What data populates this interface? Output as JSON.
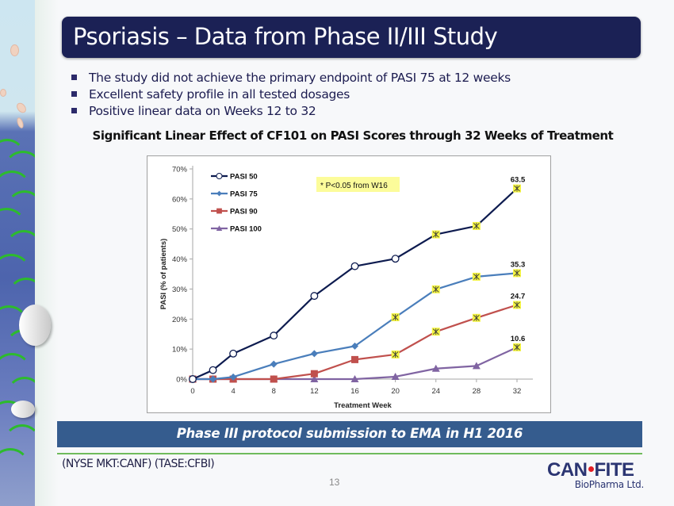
{
  "slide": {
    "title": "Psoriasis – Data from Phase II/III Study",
    "bullets": [
      "The study did not achieve the primary endpoint of PASI 75 at 12 weeks",
      "Excellent safety profile in all tested dosages",
      "Positive linear data on Weeks 12 to 32"
    ],
    "chart_heading": "Significant Linear Effect of CF101 on PASI Scores through 32 Weeks of Treatment",
    "banner": "Phase III protocol submission to EMA in H1 2016",
    "ticker": "(NYSE MKT:CANF)  (TASE:CFBI)",
    "page_number": "13",
    "logo": {
      "main_left": "CAN",
      "main_right": "FITE",
      "sub": "BioPharma Ltd."
    }
  },
  "colors": {
    "title_bg": "#1b2155",
    "banner_bg": "#355c8e",
    "footer_line": "#6fbb5c",
    "logo_dot": "#e31e24",
    "significance_marker": "#f5f542"
  },
  "chart_data": {
    "type": "line",
    "title": "Significant Linear Effect of CF101 on PASI Scores through 32 Weeks of Treatment",
    "xlabel": "Treatment Week",
    "ylabel": "PASI (% of patients)",
    "x": [
      0,
      2,
      4,
      8,
      12,
      16,
      20,
      24,
      28,
      32
    ],
    "xticks": [
      0,
      4,
      8,
      12,
      16,
      20,
      24,
      28,
      32
    ],
    "yticks": [
      0,
      10,
      20,
      30,
      40,
      50,
      60,
      70
    ],
    "ytick_labels": [
      "0%",
      "10%",
      "20%",
      "30%",
      "40%",
      "50%",
      "60%",
      "70%"
    ],
    "xlim": [
      0,
      32
    ],
    "ylim": [
      0,
      70
    ],
    "grid": false,
    "legend_position": "top-left",
    "annotation": "* P<0.05 from W16",
    "series": [
      {
        "name": "PASI 50",
        "color": "#0d1b4f",
        "marker": "circle-open",
        "values": [
          0,
          3.0,
          8.5,
          14.5,
          27.7,
          37.6,
          40.1,
          48.2,
          51.0,
          63.5
        ],
        "significant": [
          24,
          28,
          32
        ],
        "end_label": "63.5"
      },
      {
        "name": "PASI 75",
        "color": "#4a7ebb",
        "marker": "diamond",
        "values": [
          0,
          0,
          0.7,
          5.0,
          8.5,
          11.0,
          20.6,
          29.9,
          34.1,
          35.3
        ],
        "significant": [
          20,
          24,
          28,
          32
        ],
        "end_label": "35.3"
      },
      {
        "name": "PASI 90",
        "color": "#c0504d",
        "marker": "square",
        "values": [
          0,
          0,
          0,
          0,
          1.8,
          6.5,
          8.2,
          15.8,
          20.4,
          24.7
        ],
        "significant": [
          20,
          24,
          28,
          32
        ],
        "end_label": "24.7"
      },
      {
        "name": "PASI 100",
        "color": "#8064a2",
        "marker": "triangle",
        "values": [
          0,
          0,
          0,
          0,
          0,
          0,
          0.8,
          3.5,
          4.4,
          10.6
        ],
        "significant": [
          32
        ],
        "end_label": "10.6"
      }
    ]
  }
}
